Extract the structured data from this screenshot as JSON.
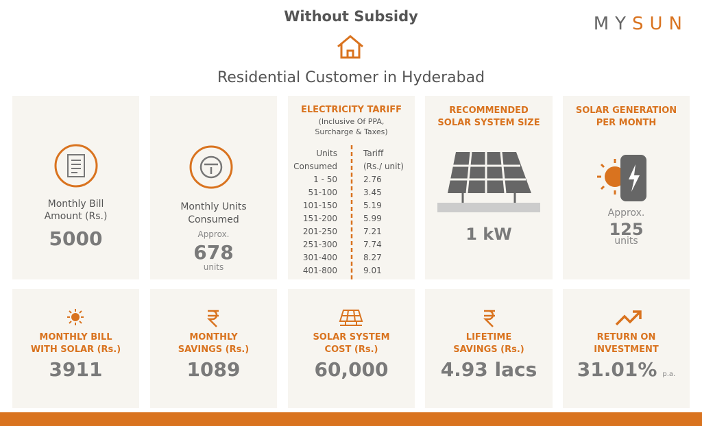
{
  "header": {
    "title": "Without Subsidy",
    "logo": {
      "my": "MY",
      "sun": "SUN"
    },
    "subtitle": "Residential Customer in Hyderabad"
  },
  "cards": [
    {
      "label": [
        "Monthly Bill",
        "Amount (Rs.)"
      ],
      "value": "5000"
    },
    {
      "label": [
        "Monthly Units",
        "Consumed"
      ],
      "approx": "Approx.",
      "value": "678",
      "unit": "units"
    },
    {
      "title": "ELECTRICITY TARIFF",
      "note": [
        "(Inclusive Of PPA,",
        "Surcharge & Taxes)"
      ],
      "columns": [
        [
          "Units",
          "Consumed"
        ],
        [
          "Tariff",
          "(Rs./ unit)"
        ]
      ],
      "rows": [
        [
          "1 - 50",
          "2.76"
        ],
        [
          "51-100",
          "3.45"
        ],
        [
          "101-150",
          "5.19"
        ],
        [
          "151-200",
          "5.99"
        ],
        [
          "201-250",
          "7.21"
        ],
        [
          "251-300",
          "7.74"
        ],
        [
          "301-400",
          "8.27"
        ],
        [
          "401-800",
          "9.01"
        ]
      ]
    },
    {
      "title": [
        "RECOMMENDED",
        "SOLAR SYSTEM SIZE"
      ],
      "value": "1 kW"
    },
    {
      "title": [
        "SOLAR GENERATION",
        "PER MONTH"
      ],
      "approx": "Approx.",
      "value": "125",
      "unit": "units"
    }
  ],
  "results": [
    {
      "title": [
        "MONTHLY BILL",
        "WITH SOLAR (Rs.)"
      ],
      "value": "3911"
    },
    {
      "title": [
        "MONTHLY",
        "SAVINGS (Rs.)"
      ],
      "value": "1089"
    },
    {
      "title": [
        "SOLAR SYSTEM",
        "COST (Rs.)"
      ],
      "value": "60,000"
    },
    {
      "title": [
        "LIFETIME",
        "SAVINGS (Rs.)"
      ],
      "value": "4.93 lacs"
    },
    {
      "title": [
        "RETURN ON",
        "INVESTMENT"
      ],
      "value": "31.01%",
      "suffix": "p.a."
    }
  ]
}
